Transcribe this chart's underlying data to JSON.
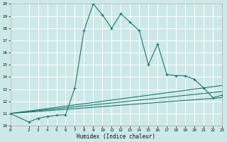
{
  "xlabel": "Humidex (Indice chaleur)",
  "ylabel": "",
  "background_color": "#cde8e8",
  "grid_color": "#ffffff",
  "line_color": "#1a7a6e",
  "xlim": [
    0,
    23
  ],
  "ylim": [
    10,
    20
  ],
  "xticks": [
    0,
    2,
    3,
    4,
    5,
    6,
    7,
    8,
    9,
    10,
    11,
    12,
    13,
    14,
    15,
    16,
    17,
    18,
    19,
    20,
    21,
    22,
    23
  ],
  "yticks": [
    10,
    11,
    12,
    13,
    14,
    15,
    16,
    17,
    18,
    19,
    20
  ],
  "main_x": [
    0,
    2,
    3,
    4,
    5,
    6,
    7,
    8,
    9,
    10,
    11,
    12,
    13,
    14,
    15,
    16,
    17,
    18,
    19,
    20,
    21,
    22,
    23
  ],
  "main_y": [
    11.0,
    10.3,
    10.6,
    10.75,
    10.85,
    10.9,
    13.1,
    17.8,
    20.0,
    19.1,
    18.0,
    19.2,
    18.5,
    17.8,
    15.0,
    16.7,
    14.2,
    14.1,
    14.1,
    13.8,
    13.1,
    12.3,
    12.5
  ],
  "line2_x": [
    0,
    23
  ],
  "line2_y": [
    11,
    12.3
  ],
  "line3_x": [
    0,
    23
  ],
  "line3_y": [
    11,
    12.8
  ],
  "line4_x": [
    0,
    23
  ],
  "line4_y": [
    11,
    13.3
  ]
}
